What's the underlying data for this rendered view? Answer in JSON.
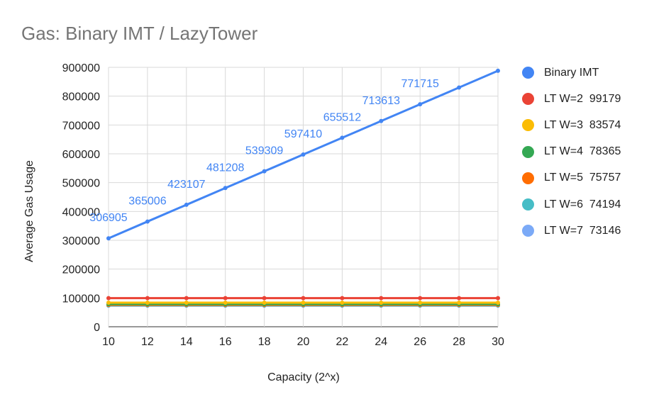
{
  "chart_data": {
    "type": "line",
    "title": "Gas: Binary IMT / LazyTower",
    "xlabel": "Capacity (2^x)",
    "ylabel": "Average Gas Usage",
    "x": [
      10,
      12,
      14,
      16,
      18,
      20,
      22,
      24,
      26,
      28,
      30
    ],
    "xlim": [
      10,
      30
    ],
    "ylim": [
      0,
      900000
    ],
    "yticks": [
      0,
      100000,
      200000,
      300000,
      400000,
      500000,
      600000,
      700000,
      800000,
      900000
    ],
    "grid": true,
    "legend_position": "right",
    "series": [
      {
        "name": "Binary IMT",
        "color": "#4285f4",
        "values": [
          306905,
          365006,
          423107,
          481208,
          539309,
          597410,
          655512,
          713613,
          771715,
          829816,
          887917
        ],
        "data_labels": [
          "306905",
          "365006",
          "423107",
          "481208",
          "539309",
          "597410",
          "655512",
          "713613",
          "771715",
          "",
          ""
        ]
      },
      {
        "name": "LT W=2  99179",
        "color": "#ea4335",
        "values": [
          99179,
          99179,
          99179,
          99179,
          99179,
          99179,
          99179,
          99179,
          99179,
          99179,
          99179
        ]
      },
      {
        "name": "LT W=3  83574",
        "color": "#fbbc04",
        "values": [
          83574,
          83574,
          83574,
          83574,
          83574,
          83574,
          83574,
          83574,
          83574,
          83574,
          83574
        ]
      },
      {
        "name": "LT W=4  78365",
        "color": "#34a853",
        "values": [
          78365,
          78365,
          78365,
          78365,
          78365,
          78365,
          78365,
          78365,
          78365,
          78365,
          78365
        ]
      },
      {
        "name": "LT W=5  75757",
        "color": "#ff6d01",
        "values": [
          75757,
          75757,
          75757,
          75757,
          75757,
          75757,
          75757,
          75757,
          75757,
          75757,
          75757
        ]
      },
      {
        "name": "LT W=6  74194",
        "color": "#46bdc6",
        "values": [
          74194,
          74194,
          74194,
          74194,
          74194,
          74194,
          74194,
          74194,
          74194,
          74194,
          74194
        ]
      },
      {
        "name": "LT W=7  73146",
        "color": "#7baaf7",
        "values": [
          73146,
          73146,
          73146,
          73146,
          73146,
          73146,
          73146,
          73146,
          73146,
          73146,
          73146
        ]
      }
    ]
  }
}
